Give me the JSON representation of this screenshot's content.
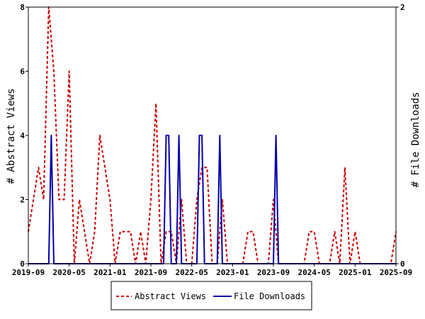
{
  "chart_data": {
    "type": "line",
    "ylabel_left": "# Abstract Views",
    "ylabel_right": "# File Downloads",
    "x_ticks": [
      "2019-09",
      "2020-05",
      "2021-01",
      "2021-09",
      "2022-05",
      "2023-01",
      "2023-09",
      "2024-05",
      "2025-01",
      "2025-09"
    ],
    "ylim_left": [
      0,
      8
    ],
    "yticks_left": [
      "0",
      "2",
      "4",
      "6",
      "8"
    ],
    "ylim_right": [
      0,
      2
    ],
    "yticks_right": [
      "0",
      "2"
    ],
    "grid": false,
    "legend_position": "bottom",
    "x_range_months": [
      0,
      72
    ],
    "series": [
      {
        "name": "Abstract Views",
        "axis": "left",
        "color": "#cc0000",
        "style": "dashed",
        "points": [
          [
            0,
            1
          ],
          [
            1,
            2
          ],
          [
            2,
            3
          ],
          [
            3,
            2
          ],
          [
            4,
            8
          ],
          [
            5,
            6
          ],
          [
            6,
            2
          ],
          [
            7,
            2
          ],
          [
            8,
            6
          ],
          [
            9,
            0
          ],
          [
            10,
            2
          ],
          [
            11,
            1
          ],
          [
            12,
            0
          ],
          [
            13,
            1
          ],
          [
            14,
            4
          ],
          [
            15,
            3
          ],
          [
            16,
            2
          ],
          [
            17,
            0
          ],
          [
            18,
            1
          ],
          [
            19,
            1
          ],
          [
            20,
            1
          ],
          [
            21,
            0
          ],
          [
            22,
            1
          ],
          [
            23,
            0
          ],
          [
            24,
            2
          ],
          [
            25,
            5
          ],
          [
            26,
            0
          ],
          [
            27,
            1
          ],
          [
            28,
            1
          ],
          [
            29,
            0
          ],
          [
            30,
            2
          ],
          [
            31,
            0
          ],
          [
            32,
            0
          ],
          [
            33,
            2
          ],
          [
            34,
            3
          ],
          [
            35,
            3
          ],
          [
            36,
            0
          ],
          [
            37,
            0
          ],
          [
            38,
            2
          ],
          [
            39,
            0
          ],
          [
            40,
            0
          ],
          [
            41,
            0
          ],
          [
            42,
            0
          ],
          [
            43,
            1
          ],
          [
            44,
            1
          ],
          [
            45,
            0
          ],
          [
            46,
            0
          ],
          [
            47,
            0
          ],
          [
            48,
            2
          ],
          [
            49,
            0
          ],
          [
            50,
            0
          ],
          [
            51,
            0
          ],
          [
            52,
            0
          ],
          [
            53,
            0
          ],
          [
            54,
            0
          ],
          [
            55,
            1
          ],
          [
            56,
            1
          ],
          [
            57,
            0
          ],
          [
            58,
            0
          ],
          [
            59,
            0
          ],
          [
            60,
            1
          ],
          [
            61,
            0
          ],
          [
            62,
            3
          ],
          [
            63,
            0
          ],
          [
            64,
            1
          ],
          [
            65,
            0
          ],
          [
            66,
            0
          ],
          [
            67,
            0
          ],
          [
            68,
            0
          ],
          [
            69,
            0
          ],
          [
            70,
            0
          ],
          [
            71,
            0
          ],
          [
            72,
            1
          ]
        ]
      },
      {
        "name": "File Downloads",
        "axis": "right",
        "color": "#0000aa",
        "style": "solid",
        "points": [
          [
            0,
            0
          ],
          [
            4,
            0
          ],
          [
            4.5,
            1
          ],
          [
            5,
            0
          ],
          [
            26.5,
            0
          ],
          [
            27,
            1
          ],
          [
            27.5,
            1
          ],
          [
            28,
            0
          ],
          [
            29,
            0
          ],
          [
            29.5,
            1
          ],
          [
            30,
            0
          ],
          [
            33,
            0
          ],
          [
            33.5,
            1
          ],
          [
            34,
            1
          ],
          [
            34.5,
            0
          ],
          [
            37,
            0
          ],
          [
            37.5,
            1
          ],
          [
            38,
            0
          ],
          [
            48,
            0
          ],
          [
            48.5,
            1
          ],
          [
            49,
            0
          ],
          [
            72,
            0
          ]
        ]
      }
    ]
  }
}
